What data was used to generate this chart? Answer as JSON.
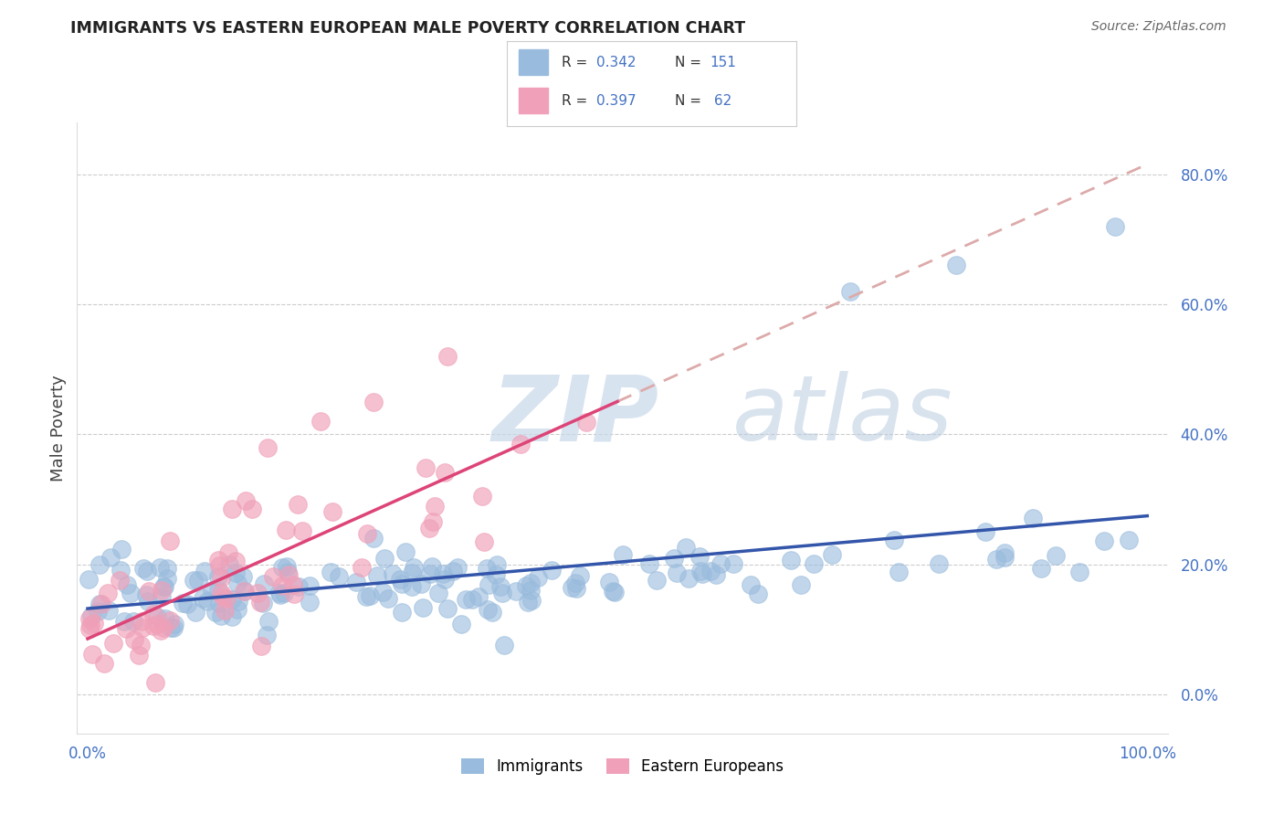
{
  "title": "IMMIGRANTS VS EASTERN EUROPEAN MALE POVERTY CORRELATION CHART",
  "source": "Source: ZipAtlas.com",
  "ylabel": "Male Poverty",
  "watermark_zip": "ZIP",
  "watermark_atlas": "atlas",
  "xlim": [
    -0.01,
    1.02
  ],
  "ylim": [
    -0.06,
    0.88
  ],
  "yticks": [
    0.0,
    0.2,
    0.4,
    0.6,
    0.8
  ],
  "ytick_labels": [
    "0.0%",
    "20.0%",
    "40.0%",
    "60.0%",
    "80.0%"
  ],
  "xtick_labels": [
    "0.0%",
    "100.0%"
  ],
  "grid_color": "#cccccc",
  "background_color": "#ffffff",
  "immigrants_color": "#99bbdd",
  "eastern_europeans_color": "#f0a0b8",
  "trend_immigrants_color": "#3355aa",
  "trend_eastern_color": "#dd4477",
  "trend_eastern_dashed_color": "#ddaaaa",
  "legend_R_immigrants": "0.342",
  "legend_N_immigrants": "151",
  "legend_R_eastern": "0.397",
  "legend_N_eastern": "62",
  "tick_label_color": "#4472c4",
  "title_color": "#222222",
  "source_color": "#666666",
  "ylabel_color": "#444444"
}
